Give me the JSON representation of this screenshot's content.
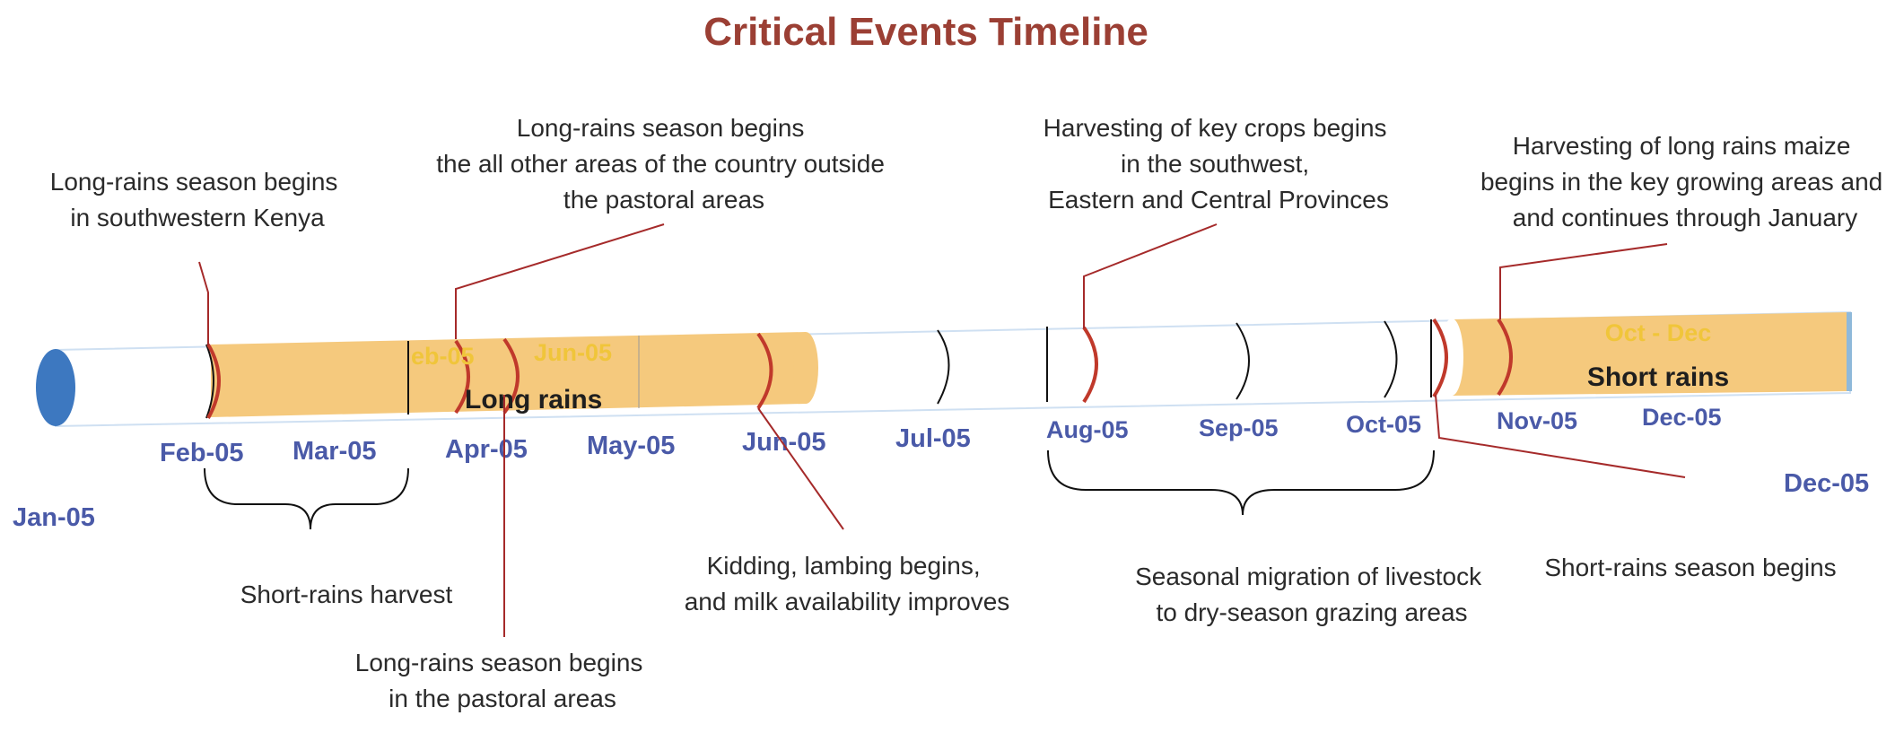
{
  "title": "Critical Events Timeline",
  "colors": {
    "title": "#9b3f34",
    "month": "#4a5aa8",
    "band": "#f5c97d",
    "band_text": "#1e1e1e",
    "band_sub": "#f0c53a",
    "ring": "#c0392b",
    "leader": "#a52a2a",
    "start_cap": "#3d78c0",
    "end_cap": "#8fb9da"
  },
  "months": [
    "Jan-05",
    "Feb-05",
    "Mar-05",
    "Apr-05",
    "May-05",
    "Jun-05",
    "Jul-05",
    "Aug-05",
    "Sep-05",
    "Oct-05",
    "Nov-05",
    "Dec-05",
    "Dec-05"
  ],
  "bands": {
    "long_rains": {
      "label": "Long rains",
      "sub_left": "eb-05",
      "sub_right": "Jun-05"
    },
    "short_rains": {
      "label": "Short rains",
      "sub": "Oct - Dec"
    }
  },
  "annotations": {
    "sw_kenya": [
      "Long-rains season begins",
      "in southwestern Kenya"
    ],
    "other_areas": [
      "Long-rains season begins",
      "the all other areas of the country outside",
      "the pastoral areas"
    ],
    "harvest_sw": [
      "Harvesting of key crops begins",
      "in the southwest,",
      "Eastern and Central Provinces"
    ],
    "harvest_maize": [
      "Harvesting of long rains maize",
      "begins in the key growing areas and",
      "and continues through January"
    ],
    "short_harvest": [
      "Short-rains harvest"
    ],
    "pastoral": [
      "Long-rains season begins",
      "in the pastoral areas"
    ],
    "kidding": [
      "Kidding, lambing begins,",
      "and milk availability improves"
    ],
    "migration": [
      "Seasonal migration of livestock",
      "to dry-season grazing areas"
    ],
    "short_begins": [
      "Short-rains season begins"
    ]
  }
}
